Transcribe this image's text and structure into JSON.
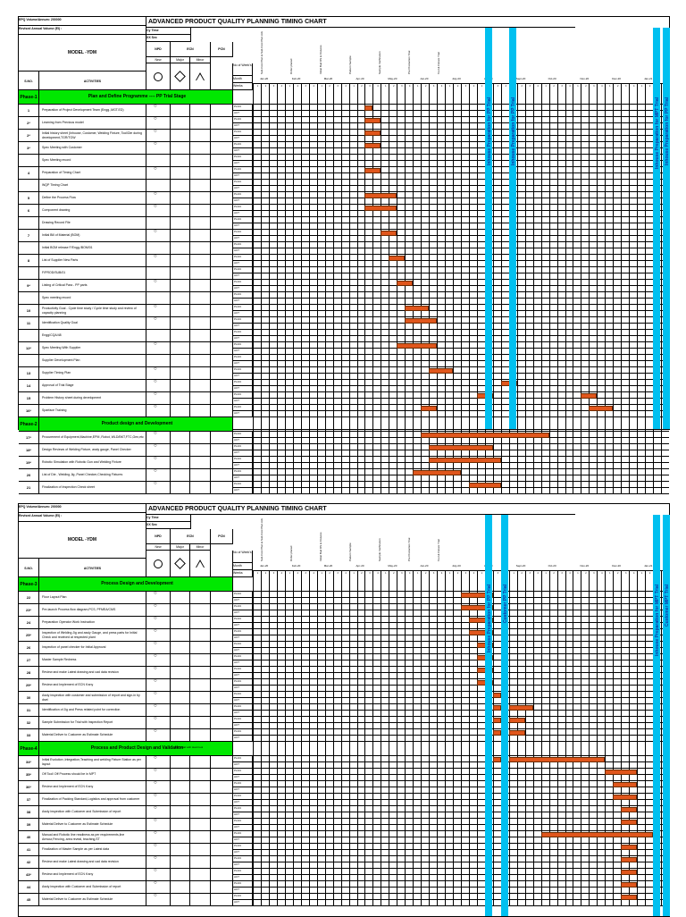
{
  "title": "ADVANCED PRODUCT QUALITY PLANNING TIMING CHART",
  "header": {
    "epq_label": "EPQ Volume/Annum: 200000",
    "revised_label": "Revised Annual Volume (EI) :",
    "cy_time": "Cy Time",
    "sec": "XX Sec",
    "model": "MODEL -YDM",
    "npd": "NPD",
    "ecn": "ECN",
    "pcn": "PCN",
    "new": "New",
    "major": "Major",
    "minor": "Minor",
    "no_of_weeks": "No of Week's",
    "sno": "S.NO.",
    "activities": "ACTIVITIES",
    "month": "Month",
    "weeks": "Weeks",
    "milestones": [
      "Sub-Cost Plan & Sub-Cost Plan Ack",
      "Order placed",
      "Initial Bud DS & Fixtures",
      "Pattern Sample",
      "Sample Verification",
      "Pre Production Trial",
      "Tool & Fixture Trial"
    ],
    "months": [
      "Jan-20",
      "Feb-20",
      "Mar-20",
      "Apr-20",
      "May-20",
      "Jun-20",
      "July-20",
      "Aug-20",
      "Sept-20",
      "Oct-20",
      "Nov-20",
      "Dec-20",
      "Jan-21"
    ],
    "planned": "PLAN",
    "actual": "ACT",
    "small_note": "BOP Supplier Design"
  },
  "vertical_labels": {
    "inhouse_pp": "Inhouse Preparation for PP Trial",
    "cust_pp": "Inhouse Preparation for PP Trial",
    "inhouse_mpt": "Inhouse Preparation for MPT Trial",
    "cust_mpt": "Inhouse Preparation for PP Trial",
    "pp_trial": "PP Trial",
    "customer_pp": "Customer PP Trial",
    "customer_mpt": "Customer MPT Trial",
    "mpt_trial": "MPT Trial"
  },
  "sheet1": {
    "rows": [
      {
        "type": "phase",
        "sno": "Phase-1",
        "text": "Plan and Define Programme ---- PP Trial Stage"
      },
      {
        "sno": "1",
        "text": "Preparation of Project Development Team (Engg.,MGT.ED)",
        "bars": [
          [
            14,
            1
          ]
        ]
      },
      {
        "sno": "2*",
        "text": "Learning from Previous model",
        "bars": [
          [
            14,
            2
          ]
        ]
      },
      {
        "sno": "2*",
        "text": "Initial history sheet (Inhouse, Customer, Welding Fixture, Tool/Die during development,TGR/TGW",
        "bars": [
          [
            14,
            2
          ]
        ]
      },
      {
        "sno": "3*",
        "text": "Spec Meeting with Customer",
        "bars": [
          [
            14,
            2
          ]
        ]
      },
      {
        "sno": "",
        "text": "Spec Meeting record",
        "bars": []
      },
      {
        "sno": "4",
        "text": "Preparation of Timing Chart",
        "bars": [
          [
            14,
            2
          ]
        ]
      },
      {
        "sno": "",
        "text": "WQP Timing Chart",
        "bars": []
      },
      {
        "sno": "5",
        "text": "Define the Process Flow",
        "bars": [
          [
            14,
            4
          ]
        ]
      },
      {
        "sno": "6",
        "text": "Component drawing",
        "bars": [
          [
            14,
            4
          ]
        ]
      },
      {
        "sno": "",
        "text": "Drawing Record File",
        "bars": []
      },
      {
        "sno": "7",
        "text": "Initial Bill of Material (BOM)",
        "bars": [
          [
            16,
            2
          ]
        ]
      },
      {
        "sno": "",
        "text": "Initial BOM release F/Engg./BOM/01",
        "bars": []
      },
      {
        "sno": "8",
        "text": "List of Supplier New Parts",
        "bars": [
          [
            17,
            2
          ]
        ]
      },
      {
        "sno": "",
        "text": "F/PROD/SUB/01",
        "bars": []
      },
      {
        "sno": "9*",
        "text": "Listing of Critical Para - PP parts",
        "bars": [
          [
            18,
            2
          ]
        ]
      },
      {
        "sno": "",
        "text": "Spec meeting record",
        "bars": []
      },
      {
        "sno": "10",
        "text": "Productivity Goal - Cycle time study / Cycle time study and review of capacity planning",
        "bars": [
          [
            19,
            3
          ]
        ]
      },
      {
        "sno": "11",
        "text": "Identification Quality Goal",
        "bars": [
          [
            19,
            4
          ]
        ]
      },
      {
        "sno": "",
        "text": "Engg/CQA/48",
        "bars": []
      },
      {
        "sno": "12*",
        "text": "Spec Meeting With Supplier",
        "bars": [
          [
            18,
            5
          ]
        ]
      },
      {
        "sno": "",
        "text": "Supplier Development Plan",
        "bars": []
      },
      {
        "sno": "13",
        "text": "Supplier Timing Plan",
        "bars": [
          [
            22,
            3
          ]
        ]
      },
      {
        "sno": "14",
        "text": "Approval of Trial Stage",
        "bars": [
          [
            31,
            2
          ]
        ]
      },
      {
        "sno": "15",
        "text": "Problem History sheet during development",
        "bars": [
          [
            28,
            2
          ],
          [
            41,
            2
          ]
        ]
      },
      {
        "sno": "16*",
        "text": "Sparface Training",
        "bars": [
          [
            21,
            2
          ],
          [
            42,
            3
          ]
        ]
      },
      {
        "type": "phase",
        "sno": "Phase-2",
        "text": "Product design and Development"
      },
      {
        "sno": "17*",
        "text": "Procurement of Equipment,Machine,EPM ,Robot, WLD/BKT,FTC,Gen,etc",
        "bars": [
          [
            21,
            16
          ]
        ]
      },
      {
        "sno": "18*",
        "text": "Design Reviews of Welding Fixture, assly gauge, Panel Checker",
        "bars": [
          [
            22,
            8
          ]
        ]
      },
      {
        "sno": "19*",
        "text": "Robotic Simulation with Robotic Gun and Welding Fixture",
        "bars": [
          [
            22,
            9
          ]
        ]
      },
      {
        "sno": "20",
        "text": "List of Die , Welding Jig ,Panel Checker,Checking Fixtures",
        "bars": [
          [
            20,
            6
          ]
        ]
      },
      {
        "sno": "21",
        "text": "Finalization of Inspection Check sheet",
        "bars": [
          [
            27,
            4
          ]
        ]
      }
    ]
  },
  "sheet2": {
    "rows": [
      {
        "type": "phase",
        "sno": "Phase-3",
        "text": "Process Design and Development"
      },
      {
        "sno": "22",
        "text": "Floor Layout Plan",
        "bars": [
          [
            26,
            4
          ]
        ]
      },
      {
        "sno": "23*",
        "text": "Pre-launch Process flow diagram,PCS, PFMEA/CMS",
        "bars": [
          [
            26,
            4
          ]
        ]
      },
      {
        "sno": "24",
        "text": "Preparation Operator Work Instruction",
        "bars": [
          [
            27,
            3
          ]
        ]
      },
      {
        "sno": "25*",
        "text": "Inspection of Welding Jig and assly Gauge, and press parts for Initial Check and received at respected plant",
        "bars": [
          [
            27,
            3
          ]
        ]
      },
      {
        "sno": "26",
        "text": "Inspection of panel checker for Initial Approval",
        "bars": [
          [
            28,
            2
          ]
        ]
      },
      {
        "sno": "27",
        "text": "Master Sample Redness",
        "bars": [
          [
            28,
            2
          ]
        ]
      },
      {
        "sno": "28",
        "text": "Review and make Latest drawing and cad data revision",
        "bars": [
          [
            28,
            2
          ]
        ]
      },
      {
        "sno": "29*",
        "text": "Review and Implement of ECN if any",
        "bars": [
          [
            28,
            2
          ]
        ]
      },
      {
        "sno": "30",
        "text": "Assly inspection with customer and submission of report and sign-in by dset",
        "bars": [
          [
            30,
            1
          ]
        ]
      },
      {
        "sno": "31",
        "text": "Identification of Jig and Press related point for correction",
        "bars": [
          [
            30,
            1
          ],
          [
            32,
            3
          ]
        ]
      },
      {
        "sno": "32",
        "text": "Sample Submission for Trial with Inspection Report",
        "bars": [
          [
            30,
            1
          ],
          [
            32,
            2
          ]
        ]
      },
      {
        "sno": "33",
        "text": "Material Deliver to Customer as Estimate Schedule",
        "bars": [
          [
            30,
            1
          ],
          [
            32,
            2
          ]
        ]
      },
      {
        "type": "phase",
        "sno": "Phase-4",
        "text": "Process and Product Design and Validation",
        "note": "MPT trial with Hard tool"
      },
      {
        "sno": "34*",
        "text": "Initial Evolution ,Integration,Teaching and welding Fixture Station as per layout",
        "bars": [
          [
            30,
            1
          ],
          [
            32,
            12
          ]
        ]
      },
      {
        "sno": "35*",
        "text": "Off Tool/ Off Process should be in MPT",
        "bars": [
          [
            44,
            4
          ]
        ]
      },
      {
        "sno": "36*",
        "text": "Review and Implement of ECN if any",
        "bars": [
          [
            45,
            3
          ]
        ]
      },
      {
        "sno": "37",
        "text": "Finalization of Packing Standard,Logistics and approval from customer",
        "bars": [
          [
            45,
            3
          ]
        ]
      },
      {
        "sno": "38",
        "text": "Assly inspection with Customer and Submission of report",
        "bars": [
          [
            46,
            2
          ]
        ]
      },
      {
        "sno": "39",
        "text": "Material Deliver to Customer as Estimate Schedule",
        "bars": [
          [
            46,
            2
          ]
        ]
      },
      {
        "sno": "40",
        "text": "Manual and Robotic line readiness as per requirements,line Armour,Fencing, area reveal, teaching,ST",
        "bars": [
          [
            36,
            14
          ]
        ]
      },
      {
        "sno": "41",
        "text": "Finalization of Master Sample as per Latest data",
        "bars": [
          [
            46,
            2
          ]
        ]
      },
      {
        "sno": "42",
        "text": "Review and make Latest drawing and cad data revision",
        "bars": [
          [
            46,
            2
          ]
        ]
      },
      {
        "sno": "43*",
        "text": "Review and Implement of ECN if any",
        "bars": [
          [
            46,
            2
          ]
        ]
      },
      {
        "sno": "44",
        "text": "Assly inspection with Customer and Submission of report",
        "bars": [
          [
            46,
            2
          ]
        ]
      },
      {
        "sno": "45",
        "text": "Material Deliver to Customer as Estimate Schedule",
        "bars": [
          [
            46,
            2
          ]
        ]
      }
    ]
  }
}
